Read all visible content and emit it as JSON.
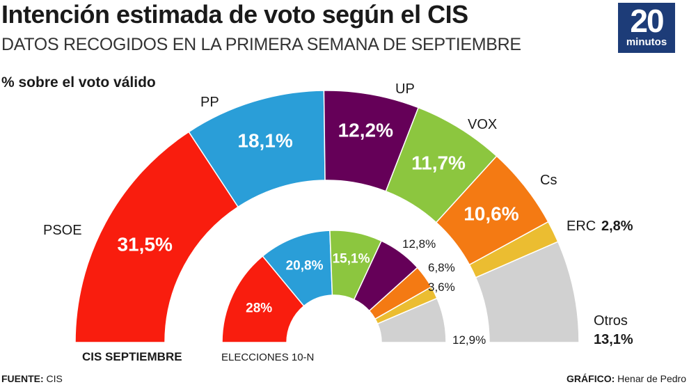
{
  "header": {
    "title": "Intención estimada de voto según el CIS",
    "subtitle": "DATOS RECOGIDOS EN LA PRIMERA SEMANA DE SEPTIEMBRE",
    "logo_number": "20",
    "logo_word": "minutos",
    "measure_label": "% sobre el voto válido"
  },
  "footer": {
    "source_key": "FUENTE:",
    "source_value": " CIS",
    "credit_key": "GRÁFICO:",
    "credit_value": " Henar de Pedro"
  },
  "chart_data": [
    {
      "type": "pie",
      "subtype": "semicircle-donut",
      "title": "CIS SEPTIEMBRE",
      "unit": "%",
      "categories": [
        "PSOE",
        "PP",
        "UP",
        "VOX",
        "Cs",
        "ERC",
        "Otros"
      ],
      "values": [
        31.5,
        18.1,
        12.2,
        11.7,
        10.6,
        2.8,
        13.1
      ],
      "value_labels": [
        "31,5%",
        "18,1%",
        "12,2%",
        "11,7%",
        "10,6%",
        "2,8%",
        "13,1%"
      ],
      "colors": [
        "#f91d0e",
        "#2a9ed8",
        "#650058",
        "#8cc63f",
        "#f47a13",
        "#ebbd31",
        "#d1d1d1"
      ]
    },
    {
      "type": "pie",
      "subtype": "semicircle-donut",
      "title": "ELECCIONES 10-N",
      "unit": "%",
      "categories": [
        "PSOE",
        "PP",
        "VOX",
        "UP",
        "Cs",
        "ERC",
        "Otros"
      ],
      "values": [
        28,
        20.8,
        15.1,
        12.8,
        6.8,
        3.6,
        12.9
      ],
      "value_labels": [
        "28%",
        "20,8%",
        "15,1%",
        "12,8%",
        "6,8%",
        "3,6%",
        "12,9%"
      ],
      "colors": [
        "#f91d0e",
        "#2a9ed8",
        "#8cc63f",
        "#650058",
        "#f47a13",
        "#ebbd31",
        "#d1d1d1"
      ]
    }
  ]
}
